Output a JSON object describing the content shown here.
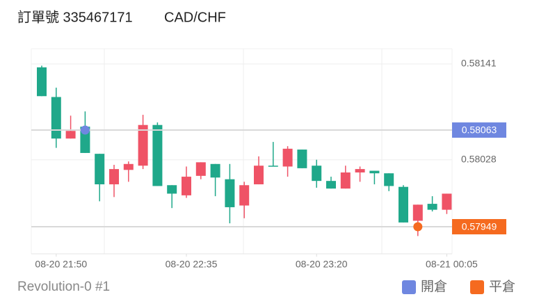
{
  "header": {
    "order": "訂單號 335467171",
    "symbol": "CAD/CHF"
  },
  "chart_data": {
    "type": "candlestick",
    "ylim": [
      0.57917,
      0.58159
    ],
    "yticks": [
      0.58141,
      0.58028
    ],
    "xticks": [
      {
        "value": 1,
        "label": "08-20 21:50"
      },
      {
        "value": 10,
        "label": "08-20 22:35"
      },
      {
        "value": 19,
        "label": "08-20 23:20"
      },
      {
        "value": 28,
        "label": "08-21 00:05"
      }
    ],
    "grid": true,
    "up_color": "#ef5366",
    "down_color": "#1fa88a",
    "open": [
      0.58137,
      0.58102,
      0.58053,
      0.58067,
      0.58035,
      0.57999,
      0.58016,
      0.58021,
      0.58069,
      0.57998,
      0.57986,
      0.58009,
      0.58023,
      0.58005,
      0.57974,
      0.57999,
      0.58021,
      0.5802,
      0.5804,
      0.58021,
      0.58003,
      0.57994,
      0.58013,
      0.58015,
      0.58012,
      0.57996,
      0.57956,
      0.57976,
      0.57969
    ],
    "high": [
      0.58139,
      0.58113,
      0.5808,
      0.58085,
      0.58035,
      0.58022,
      0.58026,
      0.58081,
      0.58072,
      0.57998,
      0.5802,
      0.58025,
      0.58023,
      0.58023,
      0.58002,
      0.58032,
      0.58049,
      0.58044,
      0.5804,
      0.58028,
      0.58008,
      0.58021,
      0.5802,
      0.58015,
      0.58012,
      0.57998,
      0.57975,
      0.57985,
      0.57988
    ],
    "low": [
      0.58103,
      0.58042,
      0.58053,
      0.58036,
      0.57979,
      0.57984,
      0.58002,
      0.58017,
      0.57997,
      0.57971,
      0.57983,
      0.58005,
      0.57985,
      0.57953,
      0.57959,
      0.57999,
      0.5802,
      0.58008,
      0.58018,
      0.57995,
      0.57994,
      0.57994,
      0.58002,
      0.57999,
      0.57991,
      0.57954,
      0.57938,
      0.57967,
      0.57964
    ],
    "close": [
      0.58103,
      0.58053,
      0.58062,
      0.58036,
      0.57999,
      0.58017,
      0.58023,
      0.58069,
      0.57997,
      0.57988,
      0.58008,
      0.58025,
      0.58007,
      0.57972,
      0.57998,
      0.58021,
      0.5802,
      0.58041,
      0.58018,
      0.58003,
      0.57994,
      0.58013,
      0.58017,
      0.58012,
      0.57997,
      0.57954,
      0.57975,
      0.57969,
      0.57988
    ],
    "markers": [
      {
        "name": "開倉",
        "color": "#6f87e0",
        "x": 3,
        "value": 0.58063
      },
      {
        "name": "平倉",
        "color": "#f56a1f",
        "x": 26,
        "value": 0.57949
      }
    ]
  },
  "footer": {
    "label": "Revolution-0 #1"
  }
}
